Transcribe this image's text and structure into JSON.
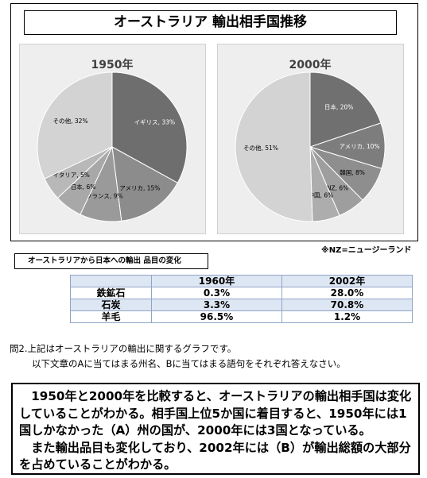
{
  "title": "オーストラリア 輸出相手国推移",
  "chart_data": [
    {
      "type": "pie",
      "title": "1950年",
      "slices": [
        {
          "label": "イギリス",
          "value": 33,
          "color": "#6e6e6e",
          "text_color": "#ffffff"
        },
        {
          "label": "アメリカ",
          "value": 15,
          "color": "#8c8c8c",
          "text_color": "#000000"
        },
        {
          "label": "フランス",
          "value": 9,
          "color": "#9a9a9a",
          "text_color": "#000000"
        },
        {
          "label": "日本",
          "value": 6,
          "color": "#a8a8a8",
          "text_color": "#000000"
        },
        {
          "label": "イタリア",
          "value": 5,
          "color": "#b8b8b8",
          "text_color": "#000000"
        },
        {
          "label": "その他",
          "value": 32,
          "color": "#d3d3d3",
          "text_color": "#000000"
        }
      ]
    },
    {
      "type": "pie",
      "title": "2000年",
      "slices": [
        {
          "label": "日本",
          "value": 20,
          "color": "#707070",
          "text_color": "#ffffff"
        },
        {
          "label": "アメリカ",
          "value": 10,
          "color": "#7d7d7d",
          "text_color": "#ffffff"
        },
        {
          "label": "韓国",
          "value": 8,
          "color": "#8e8e8e",
          "text_color": "#000000"
        },
        {
          "label": "NZ",
          "value": 6,
          "color": "#9e9e9e",
          "text_color": "#000000"
        },
        {
          "label": "中国",
          "value": 6,
          "color": "#adadad",
          "text_color": "#000000"
        },
        {
          "label": "その他",
          "value": 51,
          "color": "#d3d3d3",
          "text_color": "#000000"
        }
      ]
    }
  ],
  "nz_note": "※NZ=ニュージーランド",
  "table_caption": "オーストラリアから日本への輸出 品目の変化",
  "exports_table": {
    "headers": [
      "",
      "1960年",
      "2002年"
    ],
    "rows": [
      {
        "item": "鉄鉱石",
        "y1960": "0.3%",
        "y2002": "28.0%"
      },
      {
        "item": "石炭",
        "y1960": "3.3%",
        "y2002": "70.8%"
      },
      {
        "item": "羊毛",
        "y1960": "96.5%",
        "y2002": "1.2%"
      }
    ]
  },
  "question": {
    "line1": "問2.上記はオーストラリアの輸出に関するグラフです。",
    "line2": "以下文章のAに当てはまる州名、Bに当てはまる語句をそれぞれ答えなさい。"
  },
  "passage": {
    "p1": "　1950年と2000年を比較すると、オーストラリアの輸出相手国は変化していることがわかる。相手国上位5か国に着目すると、1950年には1国しかなかった（A）州の国が、2000年には3国となっている。",
    "p2": "　また輸出品目も変化しており、2002年には（B）が輸出総額の大部分を占めていることがわかる。"
  }
}
